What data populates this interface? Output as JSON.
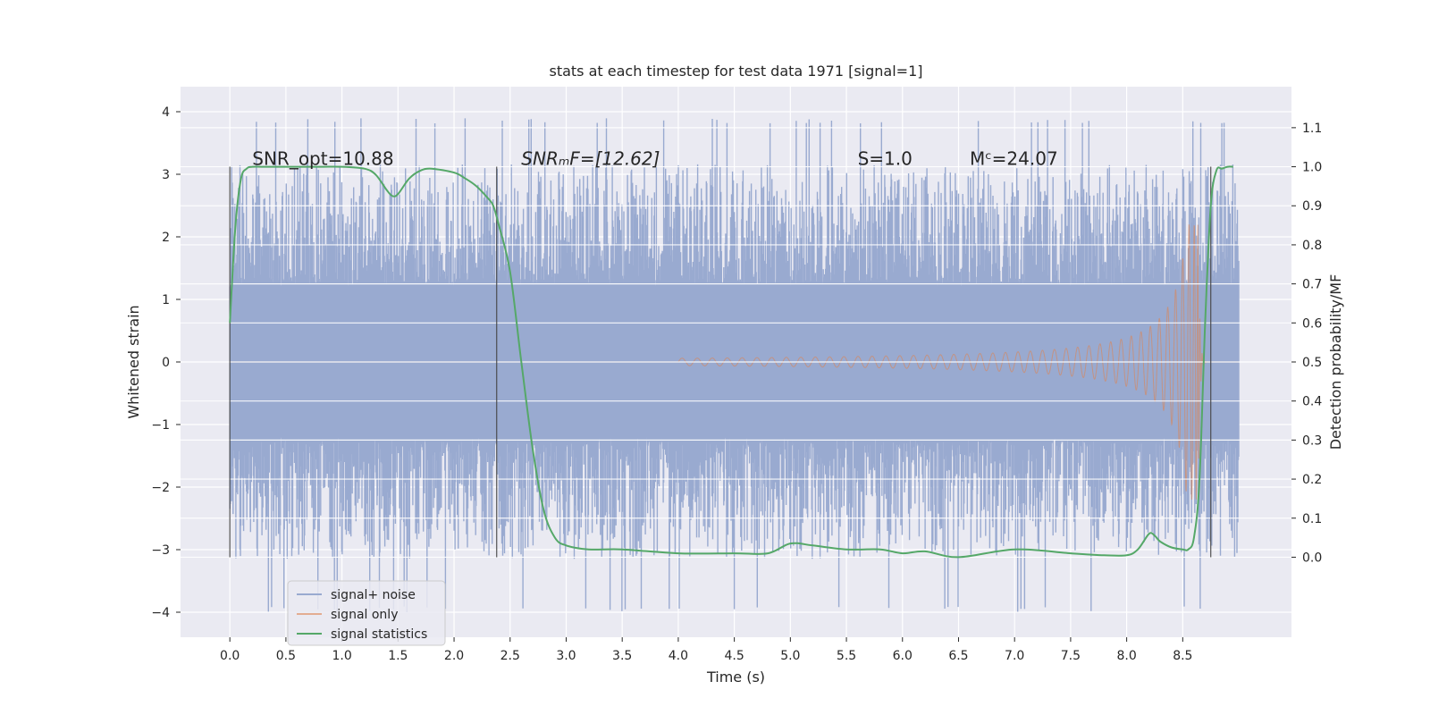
{
  "chart_data": {
    "type": "line",
    "title": "stats at each timestep for test data 1971 [signal=1]",
    "xlabel": "Time (s)",
    "ylabel": "Whitened strain",
    "y2label": "Detection probability/MF",
    "xlim": [
      -0.44,
      9.47
    ],
    "ylim": [
      -4.4,
      4.4
    ],
    "y2lim": [
      -0.205,
      1.205
    ],
    "xticks": [
      "0.0",
      "0.5",
      "1.0",
      "1.5",
      "2.0",
      "2.5",
      "3.0",
      "3.5",
      "4.0",
      "4.5",
      "5.0",
      "5.5",
      "6.0",
      "6.5",
      "7.0",
      "7.5",
      "8.0",
      "8.5"
    ],
    "yticks": [
      "4",
      "3",
      "2",
      "1",
      "0",
      "−1",
      "−2",
      "−3",
      "−4"
    ],
    "y2ticks": [
      "1.1",
      "1.0",
      "0.9",
      "0.8",
      "0.7",
      "0.6",
      "0.5",
      "0.4",
      "0.3",
      "0.2",
      "0.1",
      "0.0"
    ],
    "noise": {
      "t_start": 0.0,
      "t_end": 9.0,
      "band": 1.2,
      "peak": 3.9,
      "trough": -4.0
    },
    "chirp": {
      "t_start": 4.0,
      "t_merger": 8.64,
      "t_end": 9.0,
      "max_amp": 2.2
    },
    "series": [
      {
        "name": "signal+ noise",
        "color": "#99aad0"
      },
      {
        "name": "signal only",
        "color": "#dd8452"
      },
      {
        "name": "signal statistics",
        "color": "#55a868",
        "axis": "right",
        "x": [
          0.0,
          0.05,
          0.1,
          0.15,
          0.2,
          0.3,
          0.5,
          0.8,
          1.0,
          1.2,
          1.3,
          1.4,
          1.45,
          1.5,
          1.6,
          1.7,
          1.8,
          2.0,
          2.1,
          2.2,
          2.3,
          2.35,
          2.4,
          2.5,
          2.6,
          2.7,
          2.8,
          2.9,
          3.0,
          3.2,
          3.5,
          4.0,
          4.5,
          4.8,
          5.0,
          5.2,
          5.5,
          5.8,
          6.0,
          6.2,
          6.5,
          7.0,
          7.5,
          7.8,
          8.0,
          8.1,
          8.2,
          8.25,
          8.3,
          8.4,
          8.5,
          8.55,
          8.6,
          8.65,
          8.7,
          8.75,
          8.8,
          8.85,
          8.9,
          8.95
        ],
        "values": [
          0.6,
          0.85,
          0.97,
          0.995,
          1.0,
          1.0,
          1.0,
          1.0,
          1.0,
          0.995,
          0.98,
          0.94,
          0.925,
          0.93,
          0.97,
          0.99,
          0.995,
          0.985,
          0.97,
          0.95,
          0.92,
          0.9,
          0.85,
          0.73,
          0.5,
          0.28,
          0.12,
          0.05,
          0.03,
          0.02,
          0.02,
          0.01,
          0.01,
          0.01,
          0.035,
          0.03,
          0.02,
          0.02,
          0.01,
          0.015,
          0.0,
          0.02,
          0.01,
          0.005,
          0.005,
          0.02,
          0.06,
          0.055,
          0.04,
          0.025,
          0.02,
          0.02,
          0.05,
          0.2,
          0.6,
          0.9,
          0.99,
          0.995,
          1.0,
          1.0
        ]
      }
    ],
    "vlines": [
      0.0,
      2.38,
      8.75
    ],
    "annotations": [
      {
        "label": "SNR_opt=10.88",
        "t": 0.2
      },
      {
        "label": "SNRₘF=[12.62]",
        "t": 2.6
      },
      {
        "label": "S=1.0",
        "t": 5.6
      },
      {
        "label": "Mᶜ=24.07",
        "t": 6.6
      }
    ],
    "legend": [
      "signal+ noise",
      "signal only",
      "signal statistics"
    ],
    "legend_position": "lower-left",
    "grid": true
  }
}
